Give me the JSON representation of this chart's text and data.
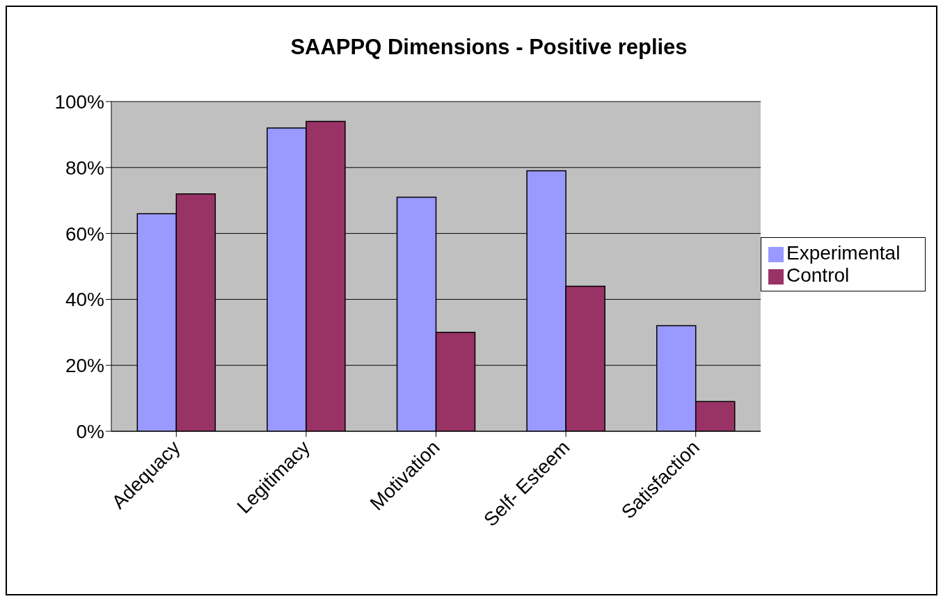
{
  "chart_data": {
    "type": "bar",
    "title": "SAAPPQ Dimensions - Positive replies",
    "categories": [
      "Adequacy",
      "Legitimacy",
      "Motivation",
      "Self- Esteem",
      "Satisfaction"
    ],
    "series": [
      {
        "name": "Experimental",
        "color": "#9999ff",
        "values": [
          66,
          92,
          71,
          79,
          32
        ]
      },
      {
        "name": "Control",
        "color": "#993366",
        "values": [
          72,
          94,
          30,
          44,
          9
        ]
      }
    ],
    "ylim": [
      0,
      100
    ],
    "yticks": [
      {
        "value": 0,
        "label": "0%"
      },
      {
        "value": 20,
        "label": "20%"
      },
      {
        "value": 40,
        "label": "40%"
      },
      {
        "value": 60,
        "label": "60%"
      },
      {
        "value": 80,
        "label": "80%"
      },
      {
        "value": 100,
        "label": "100%"
      }
    ],
    "grid": "y",
    "legend": "right"
  }
}
